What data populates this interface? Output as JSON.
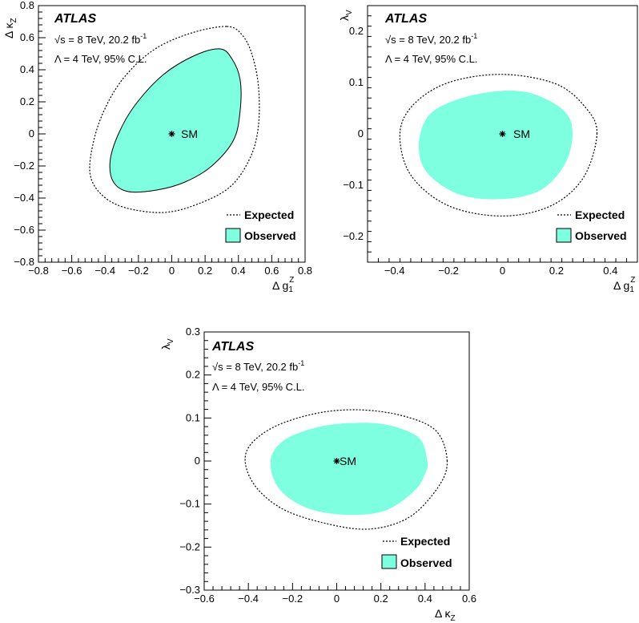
{
  "chart_data": [
    {
      "type": "contour",
      "title": "ATLAS",
      "energy_label": "√s = 8 TeV, 20.2 fb",
      "lumi_exponent": "-1",
      "info_line2": "Λ = 4 TeV, 95% C.L.",
      "xlabel_main": "Δ g",
      "xlabel_sup": "Z",
      "xlabel_sub": "1",
      "ylabel_main": "Δ κ",
      "ylabel_sub": "Z",
      "xlim": [
        -0.8,
        0.8
      ],
      "ylim": [
        -0.8,
        0.8
      ],
      "xticks": [
        "−0.8",
        "−0.6",
        "−0.4",
        "−0.2",
        "0",
        "0.2",
        "0.4",
        "0.6",
        "0.8"
      ],
      "yticks": [
        "−0.8",
        "−0.6",
        "−0.4",
        "−0.2",
        "0",
        "0.2",
        "0.4",
        "0.6",
        "0.8"
      ],
      "sm_point": {
        "x": 0,
        "y": 0,
        "label": "SM"
      },
      "legend": {
        "expected": "Expected",
        "observed": "Observed"
      },
      "fill_color": "#7effe0",
      "expected_contour": [
        [
          0.33,
          0.67
        ],
        [
          0.42,
          0.62
        ],
        [
          0.48,
          0.5
        ],
        [
          0.52,
          0.3
        ],
        [
          0.52,
          0.05
        ],
        [
          0.47,
          -0.15
        ],
        [
          0.35,
          -0.33
        ],
        [
          0.15,
          -0.44
        ],
        [
          -0.05,
          -0.49
        ],
        [
          -0.28,
          -0.46
        ],
        [
          -0.42,
          -0.38
        ],
        [
          -0.49,
          -0.25
        ],
        [
          -0.47,
          -0.05
        ],
        [
          -0.4,
          0.16
        ],
        [
          -0.28,
          0.36
        ],
        [
          -0.1,
          0.53
        ],
        [
          0.12,
          0.63
        ]
      ],
      "observed_contour": [
        [
          0.29,
          0.53
        ],
        [
          0.36,
          0.47
        ],
        [
          0.41,
          0.34
        ],
        [
          0.41,
          0.14
        ],
        [
          0.37,
          -0.04
        ],
        [
          0.24,
          -0.2
        ],
        [
          0.08,
          -0.3
        ],
        [
          -0.09,
          -0.35
        ],
        [
          -0.26,
          -0.36
        ],
        [
          -0.35,
          -0.3
        ],
        [
          -0.37,
          -0.17
        ],
        [
          -0.32,
          0.0
        ],
        [
          -0.22,
          0.18
        ],
        [
          -0.05,
          0.37
        ],
        [
          0.14,
          0.49
        ]
      ]
    },
    {
      "type": "contour",
      "title": "ATLAS",
      "energy_label": "√s = 8 TeV, 20.2 fb",
      "lumi_exponent": "-1",
      "info_line2": "Λ = 4 TeV, 95% C.L.",
      "xlabel_main": "Δ g",
      "xlabel_sup": "Z",
      "xlabel_sub": "1",
      "ylabel_main": "λ",
      "ylabel_sub": "V",
      "xlim": [
        -0.5,
        0.5
      ],
      "ylim": [
        -0.25,
        0.25
      ],
      "xticks": [
        "−0.4",
        "−0.2",
        "0",
        "0.2",
        "0.4"
      ],
      "yticks": [
        "−0.2",
        "−0.1",
        "0",
        "0.1",
        "0.2"
      ],
      "sm_point": {
        "x": 0,
        "y": 0,
        "label": "SM"
      },
      "legend": {
        "expected": "Expected",
        "observed": "Observed"
      },
      "fill_color": "#7effe0",
      "expected_contour": [
        [
          0.35,
          0.0
        ],
        [
          0.31,
          0.05
        ],
        [
          0.2,
          0.097
        ],
        [
          0.0,
          0.116
        ],
        [
          -0.2,
          0.1
        ],
        [
          -0.33,
          0.057
        ],
        [
          -0.38,
          0.0
        ],
        [
          -0.34,
          -0.08
        ],
        [
          -0.2,
          -0.14
        ],
        [
          0.0,
          -0.16
        ],
        [
          0.18,
          -0.14
        ],
        [
          0.3,
          -0.085
        ]
      ],
      "observed_contour": [
        [
          0.26,
          0.0
        ],
        [
          0.23,
          0.044
        ],
        [
          0.12,
          0.077
        ],
        [
          0.0,
          0.084
        ],
        [
          -0.15,
          0.07
        ],
        [
          -0.27,
          0.038
        ],
        [
          -0.31,
          -0.02
        ],
        [
          -0.28,
          -0.075
        ],
        [
          -0.16,
          -0.118
        ],
        [
          0.0,
          -0.127
        ],
        [
          0.14,
          -0.11
        ],
        [
          0.23,
          -0.06
        ]
      ]
    },
    {
      "type": "contour",
      "title": "ATLAS",
      "energy_label": "√s = 8 TeV, 20.2 fb",
      "lumi_exponent": "-1",
      "info_line2": "Λ = 4 TeV, 95% C.L.",
      "xlabel_main": "Δ κ",
      "xlabel_sub": "Z",
      "ylabel_main": "λ",
      "ylabel_sub": "V",
      "xlim": [
        -0.6,
        0.6
      ],
      "ylim": [
        -0.3,
        0.3
      ],
      "xticks": [
        "−0.6",
        "−0.4",
        "−0.2",
        "0",
        "0.2",
        "0.4",
        "0.6"
      ],
      "yticks": [
        "−0.3",
        "−0.2",
        "−0.1",
        "0",
        "0.1",
        "0.2",
        "0.3"
      ],
      "sm_point": {
        "x": 0,
        "y": 0,
        "label": "SM"
      },
      "legend": {
        "expected": "Expected",
        "observed": "Observed"
      },
      "fill_color": "#7effe0",
      "expected_contour": [
        [
          0.5,
          0.0
        ],
        [
          0.45,
          0.07
        ],
        [
          0.3,
          0.105
        ],
        [
          0.1,
          0.119
        ],
        [
          -0.1,
          0.11
        ],
        [
          -0.3,
          0.075
        ],
        [
          -0.41,
          0.02
        ],
        [
          -0.38,
          -0.05
        ],
        [
          -0.25,
          -0.11
        ],
        [
          -0.05,
          -0.145
        ],
        [
          0.15,
          -0.158
        ],
        [
          0.33,
          -0.13
        ],
        [
          0.46,
          -0.06
        ]
      ],
      "observed_contour": [
        [
          0.41,
          0.0
        ],
        [
          0.37,
          0.055
        ],
        [
          0.22,
          0.085
        ],
        [
          0.05,
          0.088
        ],
        [
          -0.1,
          0.077
        ],
        [
          -0.24,
          0.048
        ],
        [
          -0.3,
          0.0
        ],
        [
          -0.26,
          -0.065
        ],
        [
          -0.13,
          -0.11
        ],
        [
          0.05,
          -0.125
        ],
        [
          0.22,
          -0.115
        ],
        [
          0.35,
          -0.07
        ],
        [
          0.4,
          -0.03
        ]
      ]
    }
  ]
}
